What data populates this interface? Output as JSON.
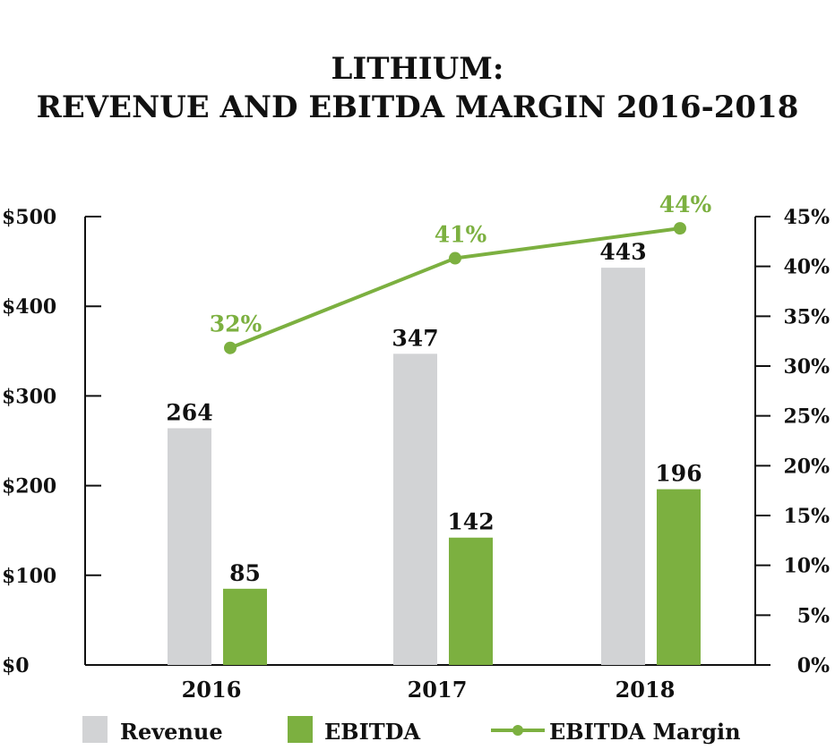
{
  "chart_data": {
    "type": "bar",
    "title_line1": "LITHIUM:",
    "title_line2": "REVENUE AND EBITDA MARGIN 2016-2018",
    "categories": [
      "2016",
      "2017",
      "2018"
    ],
    "series": [
      {
        "name": "Revenue",
        "type": "bar",
        "axis": "left",
        "color": "#d2d3d5",
        "values": [
          264,
          347,
          443
        ]
      },
      {
        "name": "EBITDA",
        "type": "bar",
        "axis": "left",
        "color": "#7cb040",
        "values": [
          85,
          142,
          196
        ]
      },
      {
        "name": "EBITDA Margin",
        "type": "line",
        "axis": "right",
        "color": "#7cb040",
        "values": [
          32,
          41,
          44
        ],
        "labels": [
          "32%",
          "41%",
          "44%"
        ]
      }
    ],
    "y_left": {
      "min": 0,
      "max": 500,
      "step": 100,
      "ticks": [
        "$0",
        "$100",
        "$200",
        "$300",
        "$400",
        "$500"
      ]
    },
    "y_right": {
      "min": 0,
      "max": 45,
      "step": 5,
      "ticks": [
        "0%",
        "5%",
        "10%",
        "15%",
        "20%",
        "25%",
        "30%",
        "35%",
        "40%",
        "45%"
      ]
    },
    "legend": {
      "position": "bottom",
      "items": [
        "Revenue",
        "EBITDA",
        "EBITDA Margin"
      ]
    }
  }
}
